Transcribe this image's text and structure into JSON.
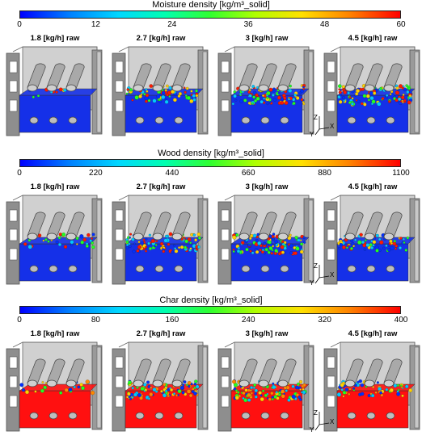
{
  "rows": [
    {
      "title": "Moisture density [kg/m³_solid]",
      "ticks": [
        "0",
        "12",
        "24",
        "36",
        "48",
        "60"
      ],
      "tick_values": [
        0,
        12,
        24,
        36,
        48,
        60
      ],
      "range": [
        0,
        60
      ],
      "bed_color": "#1530e8",
      "particle_palette": [
        "#ff1a00",
        "#ffd000",
        "#22ff22",
        "#00c8ff",
        "#0030ff"
      ],
      "particle_density": [
        0.1,
        0.55,
        0.75,
        0.85
      ],
      "panels": [
        "1.8 [kg/h] raw",
        "2.7 [kg/h] raw",
        "3 [kg/h] raw",
        "4.5 [kg/h] raw"
      ]
    },
    {
      "title": "Wood density [kg/m³_solid]",
      "ticks": [
        "0",
        "220",
        "440",
        "660",
        "880",
        "1100"
      ],
      "tick_values": [
        0,
        220,
        440,
        660,
        880,
        1100
      ],
      "range": [
        0,
        1100
      ],
      "bed_color": "#1530e8",
      "particle_palette": [
        "#ff1a00",
        "#ffd000",
        "#22ff22",
        "#00c8ff",
        "#0030ff"
      ],
      "particle_density": [
        0.3,
        0.7,
        0.85,
        0.55
      ],
      "panels": [
        "1.8 [kg/h] raw",
        "2.7 [kg/h] raw",
        "3 [kg/h] raw",
        "4.5 [kg/h] raw"
      ]
    },
    {
      "title": "Char density [kg/m³_solid]",
      "ticks": [
        "0",
        "80",
        "160",
        "240",
        "320",
        "400"
      ],
      "tick_values": [
        0,
        80,
        160,
        240,
        320,
        400
      ],
      "range": [
        0,
        400
      ],
      "bed_color": "#ff1010",
      "particle_palette": [
        "#0030ff",
        "#00c8ff",
        "#22ff22",
        "#ffd000",
        "#ff8800"
      ],
      "particle_density": [
        0.15,
        0.7,
        0.8,
        0.45
      ],
      "panels": [
        "1.8 [kg/h] raw",
        "2.7 [kg/h] raw",
        "3 [kg/h] raw",
        "4.5 [kg/h] raw"
      ]
    }
  ],
  "axes_triad": {
    "z": "Z",
    "x": "X",
    "y": "Y"
  }
}
